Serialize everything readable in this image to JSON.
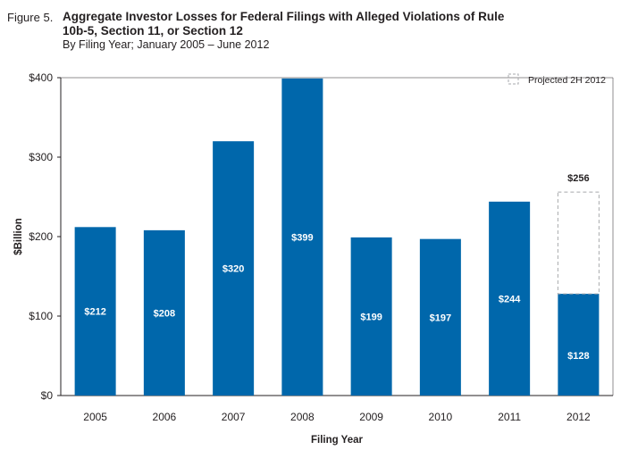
{
  "figure": {
    "label": "Figure 5.",
    "title": "Aggregate Investor Losses for Federal Filings with Alleged Violations of Rule 10b-5, Section 11, or Section 12",
    "subtitle": "By Filing Year; January 2005 – June 2012"
  },
  "chart_data": {
    "type": "bar",
    "categories": [
      "2005",
      "2006",
      "2007",
      "2008",
      "2009",
      "2010",
      "2011",
      "2012"
    ],
    "series": [
      {
        "values": [
          212,
          208,
          320,
          399,
          199,
          197,
          244,
          128
        ]
      }
    ],
    "value_labels": [
      "$212",
      "$208",
      "$320",
      "$399",
      "$199",
      "$197",
      "$244",
      "$128"
    ],
    "projected": {
      "name": "Projected 2H 2012",
      "category": "2012",
      "value": 256,
      "label": "$256"
    },
    "xlabel": "Filing Year",
    "ylabel": "$Billion",
    "ylim": [
      0,
      400
    ],
    "yticks": [
      0,
      100,
      200,
      300,
      400
    ],
    "ytick_labels": [
      "$0",
      "$100",
      "$200",
      "$300",
      "$400"
    ],
    "grid": false,
    "legend_position": "top-right",
    "colors": {
      "bar": "#0067ab",
      "projected_outline": "#a7a9ac",
      "axis": "#231f20"
    }
  }
}
